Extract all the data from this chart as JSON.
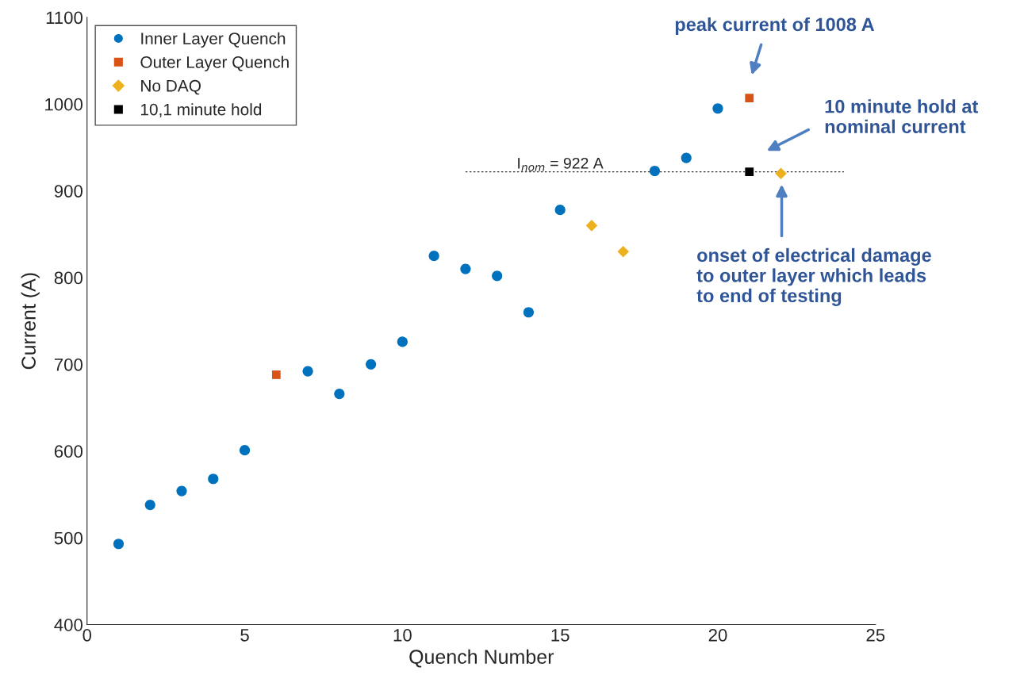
{
  "chart_data": {
    "type": "scatter",
    "xlabel": "Quench Number",
    "ylabel": "Current (A)",
    "xlim": [
      0,
      25
    ],
    "ylim": [
      400,
      1100
    ],
    "xticks": [
      0,
      5,
      10,
      15,
      20,
      25
    ],
    "yticks": [
      400,
      500,
      600,
      700,
      800,
      900,
      1000,
      1100
    ],
    "grid": false,
    "legend": "top left",
    "series": [
      {
        "name": "Inner Layer Quench",
        "color": "#0072bd",
        "marker": "circle",
        "x": [
          1,
          2,
          3,
          4,
          5,
          7,
          8,
          9,
          10,
          11,
          12,
          13,
          14,
          15,
          18,
          19,
          20
        ],
        "values": [
          493,
          538,
          554,
          568,
          601,
          692,
          666,
          700,
          726,
          825,
          810,
          802,
          760,
          878,
          923,
          938,
          995
        ]
      },
      {
        "name": "Outer Layer Quench",
        "color": "#d95319",
        "marker": "square",
        "x": [
          6,
          21
        ],
        "values": [
          688,
          1007
        ]
      },
      {
        "name": "No DAQ",
        "color": "#edb120",
        "marker": "diamond",
        "x": [
          16,
          17,
          22
        ],
        "values": [
          860,
          830,
          920
        ]
      },
      {
        "name": "10,1 minute hold",
        "color": "#000000",
        "marker": "square",
        "x": [
          21
        ],
        "values": [
          922
        ]
      }
    ],
    "ref_lines": [
      {
        "axis": "y",
        "value": 922,
        "label": "I$_{nom}$ = 922 A",
        "line_style": "dotted",
        "color": "#333333"
      }
    ],
    "annotations": [
      "peak current of 1008 A",
      "10 minute hold at\nnominal current",
      "onset of electrical damage\nto outer layer which leads\nto end of testing"
    ]
  }
}
